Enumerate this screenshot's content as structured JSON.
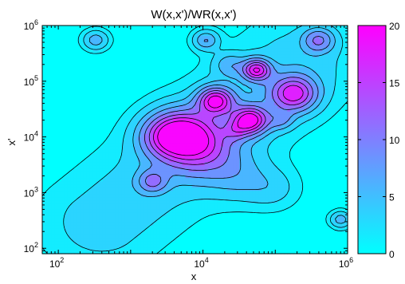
{
  "chart_data": {
    "type": "heatmap",
    "title": "W(x,x')/WR(x,x')",
    "xlabel": "x",
    "ylabel": "x'",
    "xscale": "log",
    "yscale": "log",
    "xlim": [
      60,
      1000000
    ],
    "ylim": [
      80,
      1000000
    ],
    "x_ticks": [
      {
        "base": "10",
        "exp": "2",
        "value": 100
      },
      {
        "base": "10",
        "exp": "4",
        "value": 10000
      },
      {
        "base": "10",
        "exp": "6",
        "value": 1000000
      }
    ],
    "y_ticks": [
      {
        "base": "10",
        "exp": "2",
        "value": 100
      },
      {
        "base": "10",
        "exp": "3",
        "value": 1000
      },
      {
        "base": "10",
        "exp": "4",
        "value": 10000
      },
      {
        "base": "10",
        "exp": "5",
        "value": 100000
      },
      {
        "base": "10",
        "exp": "6",
        "value": 1000000
      }
    ],
    "colorbar": {
      "min": 0,
      "max": 20,
      "ticks": [
        "0",
        "5",
        "10",
        "15",
        "20"
      ],
      "colormap": "cool",
      "low_color": "#00ffff",
      "high_color": "#ff00ff"
    },
    "contour_levels": [
      0.8,
      2.2,
      4.5,
      7,
      10,
      13,
      16,
      19
    ],
    "peaks": [
      {
        "x": 330,
        "y": 550000,
        "amplitude": 6,
        "width_dex": 0.12
      },
      {
        "x": 2000,
        "y": 1600,
        "amplitude": 8,
        "width_dex": 0.14
      },
      {
        "x": 800000,
        "y": 330,
        "amplitude": 6,
        "width_dex": 0.1
      },
      {
        "x": 5000,
        "y": 12000,
        "amplitude": 13,
        "width_dex": 0.3
      },
      {
        "x": 9000,
        "y": 6500,
        "amplitude": 11,
        "width_dex": 0.35
      },
      {
        "x": 15000,
        "y": 45000,
        "amplitude": 18,
        "width_dex": 0.17
      },
      {
        "x": 45000,
        "y": 20000,
        "amplitude": 19,
        "width_dex": 0.17
      },
      {
        "x": 55000,
        "y": 160000,
        "amplitude": 17,
        "width_dex": 0.13
      },
      {
        "x": 180000,
        "y": 60000,
        "amplitude": 16,
        "width_dex": 0.22
      },
      {
        "x": 11000,
        "y": 550000,
        "amplitude": 7,
        "width_dex": 0.12
      },
      {
        "x": 400000,
        "y": 550000,
        "amplitude": 9,
        "width_dex": 0.15
      },
      {
        "x": 23000,
        "y": 200000,
        "amplitude": 5,
        "width_dex": 0.15
      },
      {
        "x": 28000,
        "y": 13000,
        "amplitude": 5,
        "width_dex": 0.12
      },
      {
        "x": 120000,
        "y": 20000,
        "amplitude": 5,
        "width_dex": 0.12
      },
      {
        "x": 3000,
        "y": 10000,
        "amplitude": 8,
        "width_dex": 0.25
      },
      {
        "x": 30000,
        "y": 2000,
        "amplitude": 4,
        "width_dex": 0.3
      },
      {
        "x": 90000,
        "y": 1200,
        "amplitude": 3,
        "width_dex": 0.25
      }
    ],
    "ridges": [
      {
        "from": [
          400,
          300
        ],
        "to": [
          200000,
          200000
        ],
        "amplitude": 3.5,
        "width_dex": 0.55
      }
    ]
  }
}
